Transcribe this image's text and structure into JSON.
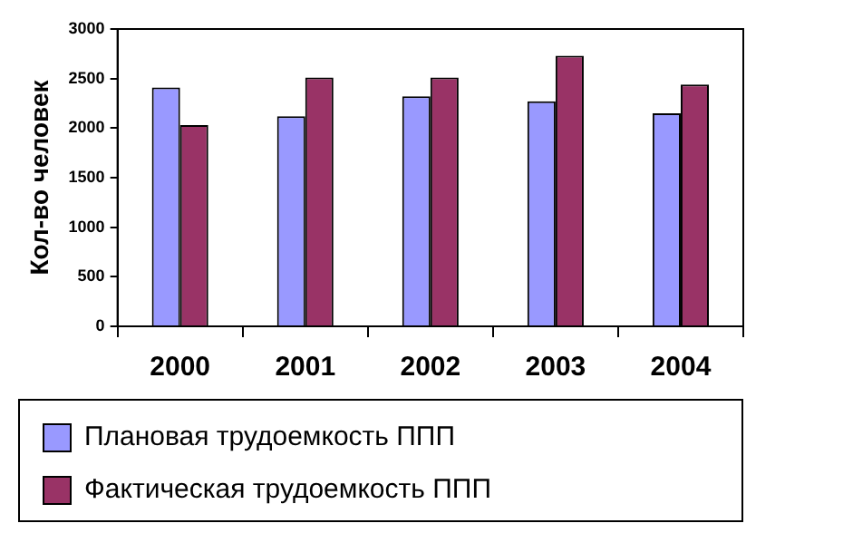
{
  "chart_data": {
    "type": "bar",
    "ylabel": "Кол-во человек",
    "categories": [
      "2000",
      "2001",
      "2002",
      "2003",
      "2004"
    ],
    "series": [
      {
        "name": "Плановая трудоемкость ППП",
        "color": "#9999ff",
        "values": [
          2410,
          2120,
          2320,
          2270,
          2150
        ]
      },
      {
        "name": "Фактическая трудоемкость ППП",
        "color": "#993366",
        "values": [
          2030,
          2510,
          2510,
          2730,
          2440
        ]
      }
    ],
    "ylim": [
      0,
      3000
    ],
    "yticks": [
      0,
      500,
      1000,
      1500,
      2000,
      2500,
      3000
    ],
    "grid": false,
    "legend": "bottom"
  }
}
